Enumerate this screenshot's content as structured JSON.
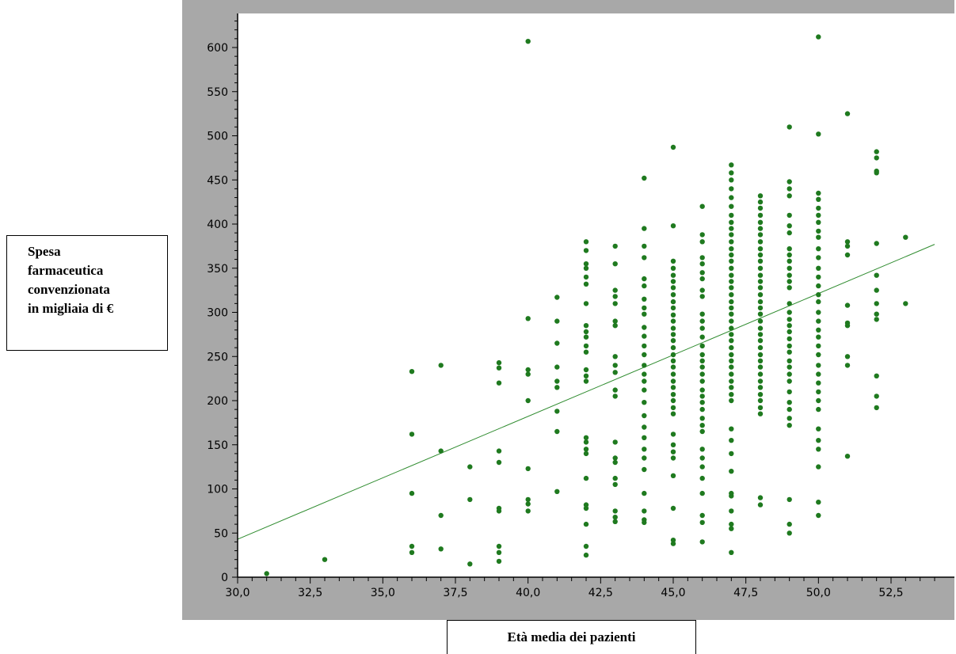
{
  "chart_data": {
    "type": "scatter",
    "title": "",
    "xlabel": "Età media dei pazienti",
    "ylabel": "Spesa farmaceutica convenzionata in migliaia di €",
    "ylabel_lines": [
      "Spesa",
      "farmaceutica",
      "convenzionata",
      "in migliaia di €"
    ],
    "xlim": [
      30.0,
      54.0
    ],
    "ylim": [
      0,
      640
    ],
    "x_ticks": [
      30.0,
      32.5,
      35.0,
      37.5,
      40.0,
      42.5,
      45.0,
      47.5,
      50.0,
      52.5
    ],
    "x_tick_labels": [
      "30,0",
      "32,5",
      "35,0",
      "37,5",
      "40,0",
      "42,5",
      "45,0",
      "47,5",
      "50,0",
      "52,5"
    ],
    "y_ticks": [
      0,
      50,
      100,
      150,
      200,
      250,
      300,
      350,
      400,
      450,
      500,
      550,
      600
    ],
    "y_tick_labels": [
      "0",
      "50",
      "100",
      "150",
      "200",
      "250",
      "300",
      "350",
      "400",
      "450",
      "500",
      "550",
      "600"
    ],
    "grid": false,
    "legend": "none",
    "colors": {
      "points": "#1f7a1f",
      "line": "#2e8b2e",
      "frame": "#a8a8a8"
    },
    "trendline": {
      "x": [
        30.0,
        54.0
      ],
      "y": [
        43,
        377
      ]
    },
    "points": [
      [
        31,
        4
      ],
      [
        33,
        20
      ],
      [
        36,
        233
      ],
      [
        36,
        162
      ],
      [
        36,
        95
      ],
      [
        36,
        35
      ],
      [
        36,
        28
      ],
      [
        37,
        240
      ],
      [
        37,
        143
      ],
      [
        37,
        70
      ],
      [
        37,
        32
      ],
      [
        38,
        125
      ],
      [
        38,
        88
      ],
      [
        38,
        15
      ],
      [
        39,
        243
      ],
      [
        39,
        237
      ],
      [
        39,
        220
      ],
      [
        39,
        143
      ],
      [
        39,
        130
      ],
      [
        39,
        78
      ],
      [
        39,
        75
      ],
      [
        39,
        35
      ],
      [
        39,
        28
      ],
      [
        39,
        18
      ],
      [
        40,
        607
      ],
      [
        40,
        293
      ],
      [
        40,
        235
      ],
      [
        40,
        230
      ],
      [
        40,
        200
      ],
      [
        40,
        123
      ],
      [
        40,
        88
      ],
      [
        40,
        83
      ],
      [
        40,
        75
      ],
      [
        41,
        317
      ],
      [
        41,
        290
      ],
      [
        41,
        265
      ],
      [
        41,
        238
      ],
      [
        41,
        222
      ],
      [
        41,
        215
      ],
      [
        41,
        188
      ],
      [
        41,
        165
      ],
      [
        41,
        97
      ],
      [
        42,
        380
      ],
      [
        42,
        370
      ],
      [
        42,
        355
      ],
      [
        42,
        350
      ],
      [
        42,
        340
      ],
      [
        42,
        332
      ],
      [
        42,
        310
      ],
      [
        42,
        285
      ],
      [
        42,
        278
      ],
      [
        42,
        272
      ],
      [
        42,
        262
      ],
      [
        42,
        255
      ],
      [
        42,
        235
      ],
      [
        42,
        228
      ],
      [
        42,
        222
      ],
      [
        42,
        158
      ],
      [
        42,
        153
      ],
      [
        42,
        145
      ],
      [
        42,
        140
      ],
      [
        42,
        112
      ],
      [
        42,
        82
      ],
      [
        42,
        78
      ],
      [
        42,
        60
      ],
      [
        42,
        35
      ],
      [
        42,
        25
      ],
      [
        43,
        375
      ],
      [
        43,
        355
      ],
      [
        43,
        325
      ],
      [
        43,
        318
      ],
      [
        43,
        310
      ],
      [
        43,
        290
      ],
      [
        43,
        285
      ],
      [
        43,
        250
      ],
      [
        43,
        240
      ],
      [
        43,
        232
      ],
      [
        43,
        212
      ],
      [
        43,
        205
      ],
      [
        43,
        153
      ],
      [
        43,
        135
      ],
      [
        43,
        130
      ],
      [
        43,
        112
      ],
      [
        43,
        105
      ],
      [
        43,
        75
      ],
      [
        43,
        68
      ],
      [
        43,
        63
      ],
      [
        44,
        452
      ],
      [
        44,
        395
      ],
      [
        44,
        375
      ],
      [
        44,
        362
      ],
      [
        44,
        338
      ],
      [
        44,
        330
      ],
      [
        44,
        315
      ],
      [
        44,
        305
      ],
      [
        44,
        298
      ],
      [
        44,
        283
      ],
      [
        44,
        273
      ],
      [
        44,
        262
      ],
      [
        44,
        252
      ],
      [
        44,
        240
      ],
      [
        44,
        230
      ],
      [
        44,
        222
      ],
      [
        44,
        212
      ],
      [
        44,
        198
      ],
      [
        44,
        183
      ],
      [
        44,
        170
      ],
      [
        44,
        158
      ],
      [
        44,
        145
      ],
      [
        44,
        135
      ],
      [
        44,
        122
      ],
      [
        44,
        95
      ],
      [
        44,
        75
      ],
      [
        44,
        65
      ],
      [
        44,
        62
      ],
      [
        45,
        487
      ],
      [
        45,
        398
      ],
      [
        45,
        358
      ],
      [
        45,
        350
      ],
      [
        45,
        342
      ],
      [
        45,
        335
      ],
      [
        45,
        328
      ],
      [
        45,
        320
      ],
      [
        45,
        312
      ],
      [
        45,
        305
      ],
      [
        45,
        297
      ],
      [
        45,
        290
      ],
      [
        45,
        282
      ],
      [
        45,
        275
      ],
      [
        45,
        268
      ],
      [
        45,
        260
      ],
      [
        45,
        252
      ],
      [
        45,
        245
      ],
      [
        45,
        238
      ],
      [
        45,
        230
      ],
      [
        45,
        222
      ],
      [
        45,
        215
      ],
      [
        45,
        207
      ],
      [
        45,
        200
      ],
      [
        45,
        192
      ],
      [
        45,
        185
      ],
      [
        45,
        162
      ],
      [
        45,
        150
      ],
      [
        45,
        142
      ],
      [
        45,
        135
      ],
      [
        45,
        115
      ],
      [
        45,
        78
      ],
      [
        45,
        42
      ],
      [
        45,
        38
      ],
      [
        46,
        420
      ],
      [
        46,
        388
      ],
      [
        46,
        380
      ],
      [
        46,
        362
      ],
      [
        46,
        355
      ],
      [
        46,
        345
      ],
      [
        46,
        338
      ],
      [
        46,
        325
      ],
      [
        46,
        318
      ],
      [
        46,
        298
      ],
      [
        46,
        290
      ],
      [
        46,
        282
      ],
      [
        46,
        272
      ],
      [
        46,
        262
      ],
      [
        46,
        252
      ],
      [
        46,
        245
      ],
      [
        46,
        238
      ],
      [
        46,
        230
      ],
      [
        46,
        222
      ],
      [
        46,
        212
      ],
      [
        46,
        205
      ],
      [
        46,
        198
      ],
      [
        46,
        190
      ],
      [
        46,
        180
      ],
      [
        46,
        172
      ],
      [
        46,
        165
      ],
      [
        46,
        145
      ],
      [
        46,
        135
      ],
      [
        46,
        125
      ],
      [
        46,
        112
      ],
      [
        46,
        95
      ],
      [
        46,
        70
      ],
      [
        46,
        62
      ],
      [
        46,
        40
      ],
      [
        47,
        467
      ],
      [
        47,
        458
      ],
      [
        47,
        450
      ],
      [
        47,
        440
      ],
      [
        47,
        430
      ],
      [
        47,
        420
      ],
      [
        47,
        410
      ],
      [
        47,
        402
      ],
      [
        47,
        395
      ],
      [
        47,
        388
      ],
      [
        47,
        380
      ],
      [
        47,
        372
      ],
      [
        47,
        365
      ],
      [
        47,
        358
      ],
      [
        47,
        350
      ],
      [
        47,
        342
      ],
      [
        47,
        335
      ],
      [
        47,
        328
      ],
      [
        47,
        320
      ],
      [
        47,
        312
      ],
      [
        47,
        305
      ],
      [
        47,
        298
      ],
      [
        47,
        290
      ],
      [
        47,
        282
      ],
      [
        47,
        275
      ],
      [
        47,
        268
      ],
      [
        47,
        260
      ],
      [
        47,
        252
      ],
      [
        47,
        245
      ],
      [
        47,
        238
      ],
      [
        47,
        230
      ],
      [
        47,
        222
      ],
      [
        47,
        215
      ],
      [
        47,
        207
      ],
      [
        47,
        200
      ],
      [
        47,
        168
      ],
      [
        47,
        155
      ],
      [
        47,
        140
      ],
      [
        47,
        120
      ],
      [
        47,
        95
      ],
      [
        47,
        92
      ],
      [
        47,
        75
      ],
      [
        47,
        60
      ],
      [
        47,
        55
      ],
      [
        47,
        28
      ],
      [
        48,
        432
      ],
      [
        48,
        425
      ],
      [
        48,
        418
      ],
      [
        48,
        410
      ],
      [
        48,
        402
      ],
      [
        48,
        395
      ],
      [
        48,
        388
      ],
      [
        48,
        380
      ],
      [
        48,
        372
      ],
      [
        48,
        365
      ],
      [
        48,
        358
      ],
      [
        48,
        350
      ],
      [
        48,
        342
      ],
      [
        48,
        335
      ],
      [
        48,
        328
      ],
      [
        48,
        320
      ],
      [
        48,
        312
      ],
      [
        48,
        305
      ],
      [
        48,
        298
      ],
      [
        48,
        290
      ],
      [
        48,
        282
      ],
      [
        48,
        275
      ],
      [
        48,
        268
      ],
      [
        48,
        260
      ],
      [
        48,
        252
      ],
      [
        48,
        245
      ],
      [
        48,
        238
      ],
      [
        48,
        230
      ],
      [
        48,
        222
      ],
      [
        48,
        215
      ],
      [
        48,
        207
      ],
      [
        48,
        200
      ],
      [
        48,
        192
      ],
      [
        48,
        185
      ],
      [
        48,
        90
      ],
      [
        48,
        82
      ],
      [
        49,
        510
      ],
      [
        49,
        448
      ],
      [
        49,
        440
      ],
      [
        49,
        432
      ],
      [
        49,
        410
      ],
      [
        49,
        398
      ],
      [
        49,
        390
      ],
      [
        49,
        372
      ],
      [
        49,
        365
      ],
      [
        49,
        358
      ],
      [
        49,
        350
      ],
      [
        49,
        342
      ],
      [
        49,
        335
      ],
      [
        49,
        328
      ],
      [
        49,
        310
      ],
      [
        49,
        300
      ],
      [
        49,
        292
      ],
      [
        49,
        285
      ],
      [
        49,
        278
      ],
      [
        49,
        270
      ],
      [
        49,
        262
      ],
      [
        49,
        255
      ],
      [
        49,
        245
      ],
      [
        49,
        238
      ],
      [
        49,
        230
      ],
      [
        49,
        222
      ],
      [
        49,
        210
      ],
      [
        49,
        198
      ],
      [
        49,
        190
      ],
      [
        49,
        180
      ],
      [
        49,
        172
      ],
      [
        49,
        88
      ],
      [
        49,
        60
      ],
      [
        49,
        50
      ],
      [
        50,
        612
      ],
      [
        50,
        502
      ],
      [
        50,
        435
      ],
      [
        50,
        428
      ],
      [
        50,
        418
      ],
      [
        50,
        410
      ],
      [
        50,
        402
      ],
      [
        50,
        392
      ],
      [
        50,
        385
      ],
      [
        50,
        372
      ],
      [
        50,
        362
      ],
      [
        50,
        350
      ],
      [
        50,
        340
      ],
      [
        50,
        330
      ],
      [
        50,
        320
      ],
      [
        50,
        312
      ],
      [
        50,
        300
      ],
      [
        50,
        290
      ],
      [
        50,
        280
      ],
      [
        50,
        272
      ],
      [
        50,
        262
      ],
      [
        50,
        252
      ],
      [
        50,
        240
      ],
      [
        50,
        230
      ],
      [
        50,
        220
      ],
      [
        50,
        210
      ],
      [
        50,
        200
      ],
      [
        50,
        190
      ],
      [
        50,
        168
      ],
      [
        50,
        155
      ],
      [
        50,
        145
      ],
      [
        50,
        125
      ],
      [
        50,
        85
      ],
      [
        50,
        70
      ],
      [
        51,
        525
      ],
      [
        51,
        380
      ],
      [
        51,
        375
      ],
      [
        51,
        365
      ],
      [
        51,
        308
      ],
      [
        51,
        288
      ],
      [
        51,
        285
      ],
      [
        51,
        250
      ],
      [
        51,
        240
      ],
      [
        51,
        137
      ],
      [
        52,
        482
      ],
      [
        52,
        475
      ],
      [
        52,
        460
      ],
      [
        52,
        458
      ],
      [
        52,
        378
      ],
      [
        52,
        342
      ],
      [
        52,
        325
      ],
      [
        52,
        310
      ],
      [
        52,
        298
      ],
      [
        52,
        292
      ],
      [
        52,
        228
      ],
      [
        52,
        205
      ],
      [
        52,
        192
      ],
      [
        53,
        385
      ],
      [
        53,
        310
      ]
    ]
  }
}
